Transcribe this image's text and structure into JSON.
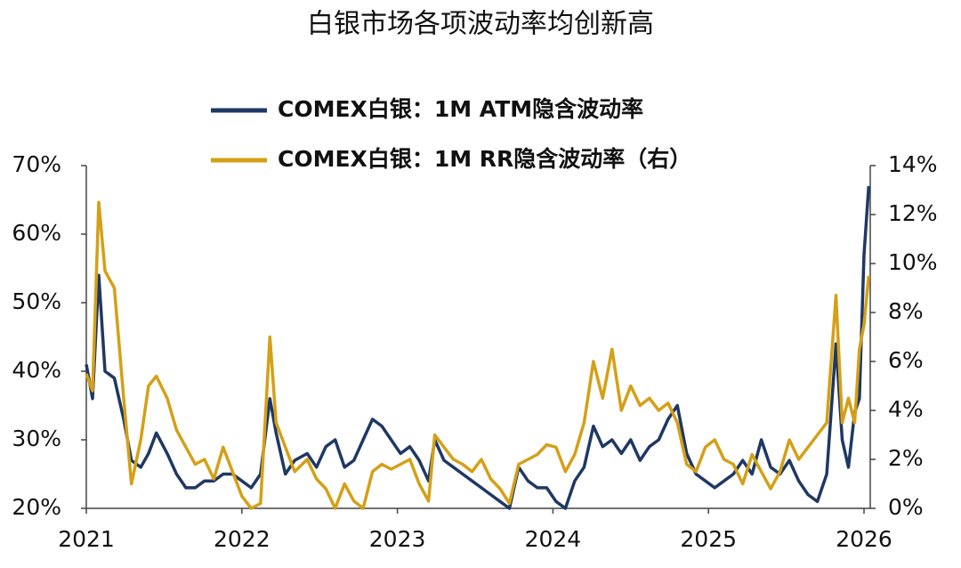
{
  "chart_data": {
    "type": "line",
    "title": "白银市场各项波动率均创新高",
    "x": [
      2021.0,
      2021.04,
      2021.08,
      2021.12,
      2021.18,
      2021.24,
      2021.29,
      2021.35,
      2021.4,
      2021.45,
      2021.52,
      2021.58,
      2021.64,
      2021.7,
      2021.76,
      2021.82,
      2021.88,
      2021.94,
      2022.0,
      2022.06,
      2022.12,
      2022.18,
      2022.22,
      2022.28,
      2022.34,
      2022.42,
      2022.48,
      2022.54,
      2022.6,
      2022.66,
      2022.72,
      2022.78,
      2022.84,
      2022.9,
      2022.96,
      2023.02,
      2023.08,
      2023.14,
      2023.2,
      2023.24,
      2023.3,
      2023.36,
      2023.42,
      2023.48,
      2023.54,
      2023.6,
      2023.66,
      2023.72,
      2023.78,
      2023.84,
      2023.9,
      2023.96,
      2024.02,
      2024.08,
      2024.14,
      2024.2,
      2024.26,
      2024.32,
      2024.38,
      2024.44,
      2024.5,
      2024.56,
      2024.62,
      2024.68,
      2024.74,
      2024.8,
      2024.86,
      2024.92,
      2024.98,
      2025.04,
      2025.1,
      2025.16,
      2025.22,
      2025.28,
      2025.34,
      2025.4,
      2025.46,
      2025.52,
      2025.58,
      2025.64,
      2025.7,
      2025.76,
      2025.82,
      2025.86,
      2025.9,
      2025.94,
      2025.97,
      2026.0,
      2026.03
    ],
    "xlim": [
      2021,
      2026.04
    ],
    "xticks": [
      2021,
      2022,
      2023,
      2024,
      2025,
      2026
    ],
    "ylim": [
      20,
      70
    ],
    "yticks": [
      {
        "value": 20,
        "label": "20%"
      },
      {
        "value": 30,
        "label": "30%"
      },
      {
        "value": 40,
        "label": "40%"
      },
      {
        "value": 50,
        "label": "50%"
      },
      {
        "value": 60,
        "label": "60%"
      },
      {
        "value": 70,
        "label": "70%"
      }
    ],
    "y2lim": [
      0,
      14
    ],
    "y2ticks": [
      {
        "value": 0,
        "label": "0%"
      },
      {
        "value": 2,
        "label": "2%"
      },
      {
        "value": 4,
        "label": "4%"
      },
      {
        "value": 6,
        "label": "6%"
      },
      {
        "value": 8,
        "label": "8%"
      },
      {
        "value": 10,
        "label": "10%"
      },
      {
        "value": 12,
        "label": "12%"
      },
      {
        "value": 14,
        "label": "14%"
      }
    ],
    "legend": "top",
    "series": [
      {
        "name": "COMEX白银：1M ATM隐含波动率",
        "color": "#1f3864",
        "values": [
          41,
          36,
          54,
          40,
          39,
          33,
          27,
          26,
          28,
          31,
          28,
          25,
          23,
          23,
          24,
          24,
          25,
          25,
          24,
          23,
          25,
          36,
          31,
          25,
          27,
          28,
          26,
          29,
          30,
          26,
          27,
          30,
          33,
          32,
          30,
          28,
          29,
          27,
          24,
          30,
          27,
          26,
          25,
          24,
          23,
          22,
          21,
          20,
          26,
          24,
          23,
          23,
          21,
          20,
          24,
          26,
          32,
          29,
          30,
          28,
          30,
          27,
          29,
          30,
          33,
          35,
          28,
          25,
          24,
          23,
          24,
          25,
          27,
          25,
          30,
          26,
          25,
          27,
          24,
          22,
          21,
          25,
          44,
          30,
          26,
          34,
          36,
          57,
          67
        ]
      },
      {
        "name": "COMEX白银：1M RR隐含波动率（右）",
        "color": "#d4a017",
        "axis": "y2",
        "values": [
          5.5,
          4.8,
          12.5,
          9.7,
          9.0,
          4.5,
          1.0,
          2.8,
          5.0,
          5.4,
          4.5,
          3.2,
          2.5,
          1.8,
          2.0,
          1.2,
          2.5,
          1.5,
          0.5,
          0.0,
          0.2,
          7.0,
          3.5,
          2.5,
          1.5,
          2.0,
          1.2,
          0.8,
          0.0,
          1.0,
          0.3,
          0.0,
          1.5,
          1.8,
          1.6,
          1.8,
          2.0,
          1.0,
          0.3,
          3.0,
          2.5,
          2.0,
          1.8,
          1.5,
          2.0,
          1.2,
          0.8,
          0.2,
          1.8,
          2.0,
          2.2,
          2.6,
          2.5,
          1.5,
          2.2,
          3.5,
          6.0,
          4.5,
          6.5,
          4.0,
          5.0,
          4.2,
          4.5,
          4.0,
          4.3,
          3.5,
          1.8,
          1.5,
          2.5,
          2.8,
          2.0,
          1.8,
          1.0,
          2.2,
          1.5,
          0.8,
          1.5,
          2.8,
          2.0,
          2.5,
          3.0,
          3.5,
          8.7,
          3.5,
          4.5,
          3.5,
          6.5,
          7.5,
          9.5
        ]
      }
    ]
  }
}
